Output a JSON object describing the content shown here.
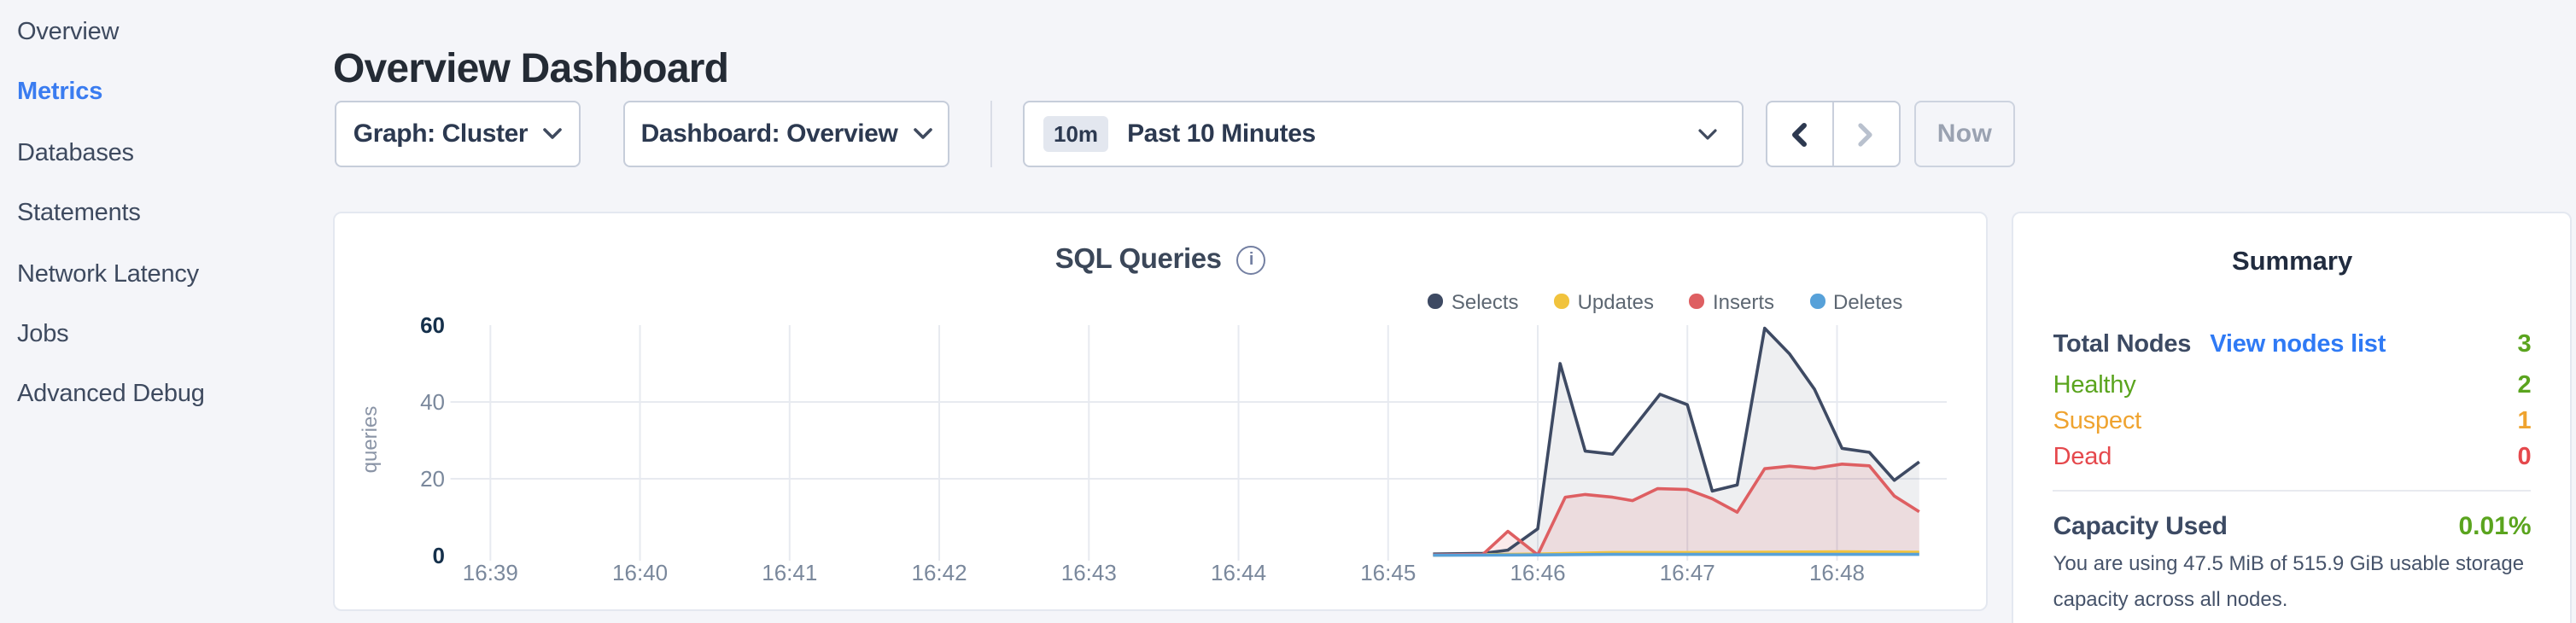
{
  "sidebar": {
    "items": [
      {
        "label": "Overview",
        "active": false
      },
      {
        "label": "Metrics",
        "active": true
      },
      {
        "label": "Databases",
        "active": false
      },
      {
        "label": "Statements",
        "active": false
      },
      {
        "label": "Network Latency",
        "active": false
      },
      {
        "label": "Jobs",
        "active": false
      },
      {
        "label": "Advanced Debug",
        "active": false
      }
    ],
    "active_color": "#3a7cf0"
  },
  "header": {
    "title": "Overview Dashboard"
  },
  "toolbar": {
    "graph_label": "Graph: Cluster",
    "dashboard_label": "Dashboard: Overview",
    "time_badge": "10m",
    "time_label": "Past 10 Minutes",
    "now_label": "Now",
    "prev_enabled_color": "#2d3950",
    "next_disabled_color": "#b9c1ce"
  },
  "icons": {
    "dropdown": "chevron-down",
    "time_dropdown": "chevron-down",
    "prev": "chevron-left",
    "next": "chevron-right",
    "chart_info": "info-circle"
  },
  "summary": {
    "title": "Summary",
    "node_rows": [
      {
        "label": "Total Nodes",
        "bold": true,
        "label_color": "#3c4a63",
        "link": "View nodes list",
        "value": "3",
        "value_color": "#5aa41e"
      },
      {
        "label": "Healthy",
        "bold": false,
        "label_color": "#5aa41e",
        "link": null,
        "value": "2",
        "value_color": "#5aa41e"
      },
      {
        "label": "Suspect",
        "bold": false,
        "label_color": "#efa32f",
        "link": null,
        "value": "1",
        "value_color": "#efa32f"
      },
      {
        "label": "Dead",
        "bold": false,
        "label_color": "#e5484c",
        "link": null,
        "value": "0",
        "value_color": "#e5484c"
      }
    ],
    "capacity_label": "Capacity Used",
    "capacity_value": "0.01%",
    "capacity_value_color": "#5aa41e",
    "capacity_description": "You are using 47.5 MiB of 515.9 GiB usable storage capacity across all nodes."
  },
  "chart_data": {
    "type": "area",
    "title": "SQL Queries",
    "ylabel": "queries",
    "ylim": [
      0,
      60
    ],
    "yticks": [
      {
        "value": 0,
        "label": "0",
        "bold": true
      },
      {
        "value": 20,
        "label": "20",
        "bold": false
      },
      {
        "value": 40,
        "label": "40",
        "bold": false
      },
      {
        "value": 60,
        "label": "60",
        "bold": true
      }
    ],
    "grid": "on",
    "legend_position": "top-right",
    "x_window_seconds": 600,
    "x_window_start_clock": "16:38:44",
    "x_ticks": [
      {
        "label": "16:39",
        "s": 16
      },
      {
        "label": "16:40",
        "s": 76
      },
      {
        "label": "16:41",
        "s": 136
      },
      {
        "label": "16:42",
        "s": 196
      },
      {
        "label": "16:43",
        "s": 256
      },
      {
        "label": "16:44",
        "s": 316
      },
      {
        "label": "16:45",
        "s": 376
      },
      {
        "label": "16:46",
        "s": 436
      },
      {
        "label": "16:47",
        "s": 496
      },
      {
        "label": "16:48",
        "s": 556
      }
    ],
    "series": [
      {
        "name": "Selects",
        "color": "#3e4a63",
        "fill_opacity": 0.09,
        "points": [
          [
            394,
            0.4
          ],
          [
            414,
            0.6
          ],
          [
            424,
            1.4
          ],
          [
            436,
            7
          ],
          [
            445,
            50
          ],
          [
            455,
            27.2
          ],
          [
            466,
            26.4
          ],
          [
            475,
            33.8
          ],
          [
            485,
            42
          ],
          [
            496,
            39.3
          ],
          [
            506,
            16.8
          ],
          [
            516,
            18.4
          ],
          [
            527,
            59.2
          ],
          [
            537,
            52.5
          ],
          [
            547,
            43.3
          ],
          [
            558,
            27.9
          ],
          [
            569,
            26.9
          ],
          [
            579,
            19.6
          ],
          [
            589,
            24.4
          ]
        ]
      },
      {
        "name": "Updates",
        "color": "#f1c33d",
        "fill_opacity": 0,
        "points": [
          [
            394,
            0.1
          ],
          [
            436,
            0.4
          ],
          [
            466,
            0.8
          ],
          [
            496,
            0.8
          ],
          [
            527,
            0.9
          ],
          [
            558,
            1.0
          ],
          [
            589,
            0.9
          ]
        ]
      },
      {
        "name": "Inserts",
        "color": "#de5f62",
        "fill_opacity": 0.13,
        "points": [
          [
            394,
            0.2
          ],
          [
            414,
            0.3
          ],
          [
            424,
            6.3
          ],
          [
            436,
            0.2
          ],
          [
            447,
            15.2
          ],
          [
            455,
            15.9
          ],
          [
            466,
            15.2
          ],
          [
            474,
            14.3
          ],
          [
            484,
            17.4
          ],
          [
            496,
            17.2
          ],
          [
            506,
            14.8
          ],
          [
            516,
            11.3
          ],
          [
            527,
            22.6
          ],
          [
            537,
            23.3
          ],
          [
            547,
            22.7
          ],
          [
            558,
            23.8
          ],
          [
            569,
            23.4
          ],
          [
            579,
            15.5
          ],
          [
            589,
            11.4
          ]
        ]
      },
      {
        "name": "Deletes",
        "color": "#57a1d9",
        "fill_opacity": 0,
        "points": [
          [
            394,
            0.1
          ],
          [
            436,
            0.2
          ],
          [
            466,
            0.3
          ],
          [
            496,
            0.3
          ],
          [
            527,
            0.3
          ],
          [
            558,
            0.3
          ],
          [
            589,
            0.3
          ]
        ]
      }
    ]
  }
}
